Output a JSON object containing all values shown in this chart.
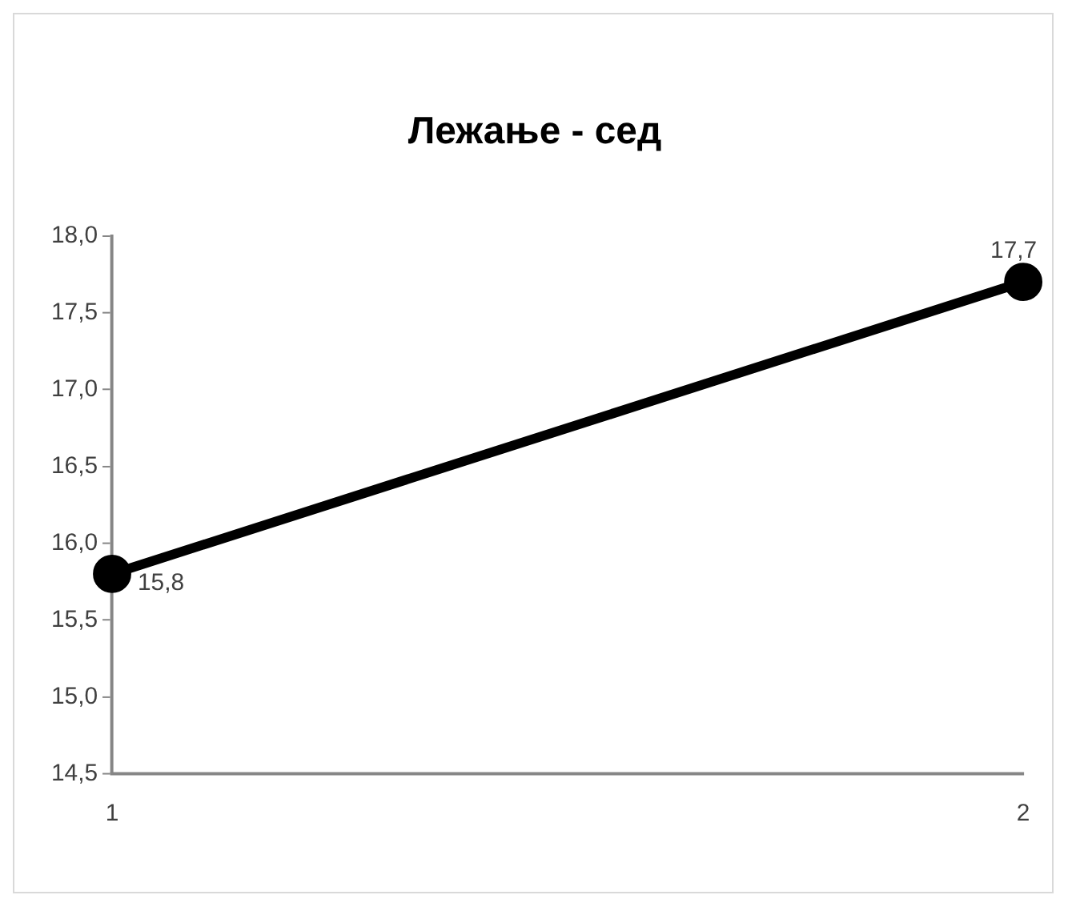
{
  "chart_data": {
    "type": "line",
    "title": "Лежање - сед",
    "categories": [
      "1",
      "2"
    ],
    "series": [
      {
        "color": "#000000",
        "values": [
          15.8,
          17.7
        ],
        "value_labels": [
          "15,8",
          "17,7"
        ]
      }
    ],
    "ylim": [
      14.5,
      18.0
    ],
    "yticks": [
      {
        "value": 14.5,
        "label": "14,5"
      },
      {
        "value": 15.0,
        "label": "15,0"
      },
      {
        "value": 15.5,
        "label": "15,5"
      },
      {
        "value": 16.0,
        "label": "16,0"
      },
      {
        "value": 16.5,
        "label": "16,5"
      },
      {
        "value": 17.0,
        "label": "17,0"
      },
      {
        "value": 17.5,
        "label": "17,5"
      },
      {
        "value": 18.0,
        "label": "18,0"
      }
    ],
    "grid": false,
    "legend": false,
    "marker": "circle",
    "line_style": "solid"
  }
}
